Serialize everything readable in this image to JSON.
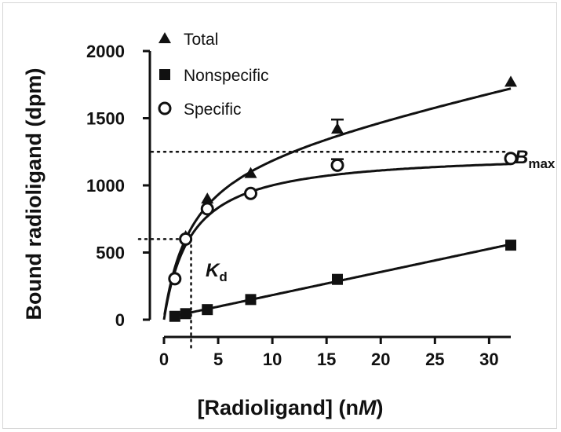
{
  "chart_data": {
    "type": "scatter",
    "xlabel_parts": [
      "[Radioligand] (n",
      "M",
      ")"
    ],
    "ylabel": "Bound radioligand (dpm)",
    "xlim": [
      0,
      32
    ],
    "ylim": [
      0,
      2000
    ],
    "x_ticks": [
      0,
      5,
      10,
      15,
      20,
      25,
      30
    ],
    "y_ticks": [
      0,
      500,
      1000,
      1500,
      2000
    ],
    "grid": false,
    "legend_position": "top-left",
    "series": [
      {
        "name": "Total",
        "marker": "triangle",
        "x": [
          1,
          2,
          4,
          8,
          16,
          32
        ],
        "y": [
          320,
          620,
          900,
          1090,
          1420,
          1770
        ],
        "error_y": [
          0,
          0,
          0,
          0,
          70,
          0
        ]
      },
      {
        "name": "Nonspecific",
        "marker": "square",
        "x": [
          1,
          2,
          4,
          8,
          16,
          32
        ],
        "y": [
          25,
          45,
          75,
          150,
          300,
          555
        ]
      },
      {
        "name": "Specific",
        "marker": "open-circle",
        "x": [
          1,
          2,
          4,
          8,
          16,
          32
        ],
        "y": [
          305,
          600,
          825,
          940,
          1150,
          1200
        ],
        "error_y": [
          0,
          0,
          0,
          0,
          45,
          0
        ]
      }
    ],
    "annotations": {
      "bmax": {
        "label_main": "B",
        "label_sub": "max",
        "value": 1250
      },
      "kd": {
        "label_main": "K",
        "label_sub": "d",
        "x": 2.5,
        "y": 600
      }
    },
    "colors": {
      "ink": "#111111",
      "background": "#ffffff"
    }
  }
}
